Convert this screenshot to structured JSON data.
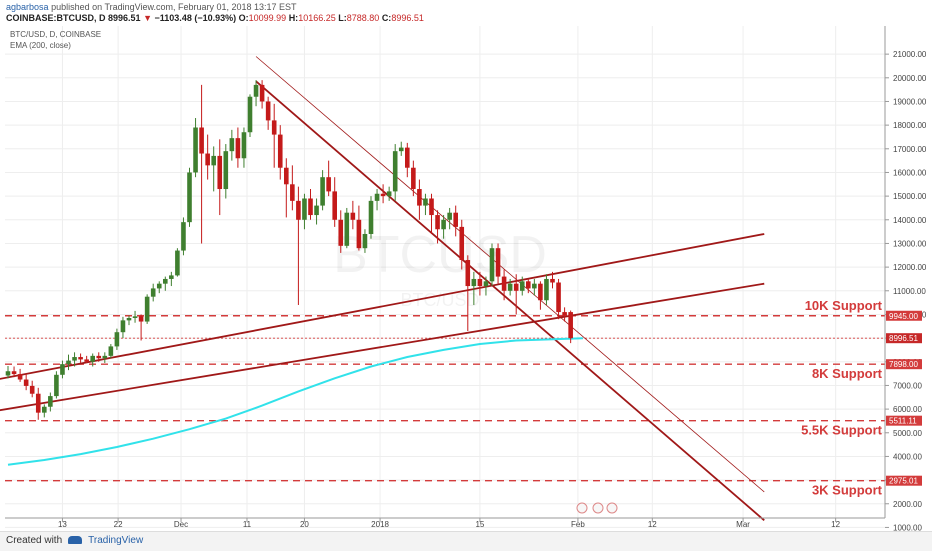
{
  "header": {
    "author": "agbarbosa",
    "published": "published on TradingView.com, February 01, 2018 13:17 EST",
    "symbol": "COINBASE:BTCUSD, D",
    "last": "8996.51",
    "change_arrow": "▼",
    "change": "−1103.48 (−10.93%)",
    "o_label": "O:",
    "o_value": "10099.99",
    "h_label": "H:",
    "h_value": "10166.25",
    "l_label": "L:",
    "l_value": "8788.80",
    "c_label": "C:",
    "c_value": "8996.51"
  },
  "legend": {
    "title": "BTC/USD, D, COINBASE",
    "indicator": "EMA (200, close)"
  },
  "watermark": {
    "symbol": "BTCUSD",
    "subtitle": "BTC/USD"
  },
  "footer": {
    "created_with": "Created with",
    "brand": "TradingView"
  },
  "colors": {
    "up": "#3f7f2f",
    "down": "#c41a1a",
    "ema": "#31e2ea",
    "trendline": "#a01818",
    "support": "#d33b3b",
    "grid": "#eeeeee",
    "price": "#c62828"
  },
  "chart_data": {
    "type": "candlestick",
    "title": "BTC/USD, D, COINBASE",
    "x_tick_labels": [
      "13",
      "22",
      "Dec",
      "11",
      "20",
      "2018",
      "15",
      "Feb",
      "12",
      "Mar",
      "12"
    ],
    "ylim": [
      500,
      21500
    ],
    "y_ticks": [
      1000,
      2000,
      3000,
      4000,
      5000,
      6000,
      7000,
      8000,
      9000,
      10000,
      11000,
      12000,
      13000,
      14000,
      15000,
      16000,
      17000,
      18000,
      19000,
      20000,
      21000
    ],
    "y_tick_labels": [
      "1000.00",
      "2000.00",
      "3000.00",
      "4000.00",
      "5000.00",
      "6000.00",
      "7000.00",
      "8000.00",
      "9000.00",
      "10000.00",
      "11000.00",
      "12000.00",
      "13000.00",
      "14000.00",
      "15000.00",
      "16000.00",
      "17000.00",
      "18000.00",
      "19000.00",
      "20000.00",
      "21000.00"
    ],
    "candles": [
      [
        7420,
        7820,
        7300,
        7600
      ],
      [
        7600,
        7800,
        7350,
        7480
      ],
      [
        7480,
        7700,
        7150,
        7250
      ],
      [
        7250,
        7500,
        6800,
        6980
      ],
      [
        6980,
        7200,
        6500,
        6650
      ],
      [
        6650,
        6900,
        5550,
        5850
      ],
      [
        5850,
        6200,
        5650,
        6100
      ],
      [
        6100,
        6700,
        5900,
        6550
      ],
      [
        6550,
        7600,
        6450,
        7450
      ],
      [
        7450,
        8050,
        7300,
        7900
      ],
      [
        7900,
        8300,
        7650,
        8050
      ],
      [
        8050,
        8400,
        7800,
        8200
      ],
      [
        8200,
        8350,
        7950,
        8100
      ],
      [
        8100,
        8250,
        7950,
        8000
      ],
      [
        8000,
        8350,
        7800,
        8250
      ],
      [
        8250,
        8400,
        8000,
        8150
      ],
      [
        8150,
        8400,
        7950,
        8250
      ],
      [
        8250,
        8750,
        8150,
        8650
      ],
      [
        8650,
        9400,
        8500,
        9250
      ],
      [
        9250,
        9900,
        9000,
        9750
      ],
      [
        9750,
        9950,
        9550,
        9850
      ],
      [
        9850,
        10150,
        9650,
        9920
      ],
      [
        9920,
        10000,
        8900,
        9700
      ],
      [
        9700,
        10850,
        9600,
        10750
      ],
      [
        10750,
        11300,
        10550,
        11100
      ],
      [
        11100,
        11400,
        10900,
        11300
      ],
      [
        11300,
        11600,
        11000,
        11500
      ],
      [
        11500,
        11800,
        11200,
        11650
      ],
      [
        11650,
        12800,
        11600,
        12700
      ],
      [
        12700,
        14100,
        12500,
        13900
      ],
      [
        13900,
        16200,
        13700,
        16000
      ],
      [
        16000,
        18300,
        15800,
        17900
      ],
      [
        17900,
        19700,
        13000,
        16800
      ],
      [
        16800,
        17600,
        15700,
        16300
      ],
      [
        16300,
        17100,
        15200,
        16700
      ],
      [
        16700,
        17400,
        14200,
        15300
      ],
      [
        15300,
        17200,
        14900,
        16900
      ],
      [
        16900,
        17800,
        16500,
        17450
      ],
      [
        17450,
        17900,
        16200,
        16600
      ],
      [
        16600,
        17900,
        16200,
        17700
      ],
      [
        17700,
        19300,
        17500,
        19200
      ],
      [
        19200,
        19900,
        18800,
        19700
      ],
      [
        19700,
        19900,
        18700,
        19000
      ],
      [
        19000,
        19200,
        17800,
        18200
      ],
      [
        18200,
        18900,
        16200,
        17600
      ],
      [
        17600,
        18000,
        15700,
        16200
      ],
      [
        16200,
        16600,
        14100,
        15500
      ],
      [
        15500,
        16300,
        14400,
        14800
      ],
      [
        14800,
        15400,
        10400,
        14000
      ],
      [
        14000,
        15100,
        13600,
        14900
      ],
      [
        14900,
        15300,
        14000,
        14200
      ],
      [
        14200,
        14900,
        13800,
        14600
      ],
      [
        14600,
        16100,
        14400,
        15800
      ],
      [
        15800,
        16500,
        15000,
        15200
      ],
      [
        15200,
        15800,
        13700,
        14000
      ],
      [
        14000,
        14400,
        12600,
        12900
      ],
      [
        12900,
        14500,
        12800,
        14300
      ],
      [
        14300,
        14800,
        13600,
        14000
      ],
      [
        14000,
        14600,
        12700,
        12800
      ],
      [
        12800,
        13600,
        12600,
        13400
      ],
      [
        13400,
        15000,
        13200,
        14800
      ],
      [
        14800,
        15300,
        14400,
        15100
      ],
      [
        15100,
        15500,
        14700,
        15000
      ],
      [
        15000,
        15400,
        14800,
        15200
      ],
      [
        15200,
        17200,
        14800,
        16900
      ],
      [
        16900,
        17300,
        16700,
        17050
      ],
      [
        17050,
        17250,
        15800,
        16200
      ],
      [
        16200,
        16500,
        15000,
        15300
      ],
      [
        15300,
        15700,
        14000,
        14600
      ],
      [
        14600,
        15100,
        14200,
        14900
      ],
      [
        14900,
        15100,
        13400,
        14200
      ],
      [
        14200,
        14400,
        13000,
        13600
      ],
      [
        13600,
        14200,
        13200,
        14000
      ],
      [
        14000,
        14500,
        13600,
        14300
      ],
      [
        14300,
        14600,
        13300,
        13700
      ],
      [
        13700,
        14000,
        11900,
        12300
      ],
      [
        12300,
        12500,
        9300,
        11200
      ],
      [
        11200,
        11800,
        10400,
        11500
      ],
      [
        11500,
        11800,
        10800,
        11200
      ],
      [
        11200,
        11600,
        10800,
        11400
      ],
      [
        11400,
        13000,
        11200,
        12800
      ],
      [
        12800,
        13000,
        11300,
        11600
      ],
      [
        11600,
        11900,
        10600,
        11000
      ],
      [
        11000,
        11500,
        10800,
        11300
      ],
      [
        11300,
        11700,
        10000,
        11000
      ],
      [
        11000,
        11600,
        10800,
        11400
      ],
      [
        11400,
        11500,
        10900,
        11100
      ],
      [
        11100,
        11500,
        10800,
        11300
      ],
      [
        11300,
        11400,
        10200,
        10600
      ],
      [
        10600,
        11700,
        10400,
        11500
      ],
      [
        11500,
        11800,
        11100,
        11350
      ],
      [
        11350,
        11500,
        9800,
        10100
      ],
      [
        10100,
        10300,
        9700,
        9950
      ],
      [
        10100,
        10166,
        8789,
        8997
      ]
    ],
    "series": [
      {
        "name": "EMA (200, close)",
        "values": [
          3650,
          3850,
          4100,
          4400,
          4750,
          5150,
          5600,
          6150,
          6750,
          7300,
          7800,
          8200,
          8500,
          8750,
          8900,
          8997
        ]
      }
    ],
    "ema_x": [
      0,
      6,
      12,
      18,
      24,
      30,
      36,
      42,
      48,
      54,
      60,
      66,
      72,
      78,
      84,
      95
    ],
    "trendlines": [
      {
        "x1": 41,
        "y1": 19850,
        "x2": 125,
        "y2": 1300
      },
      {
        "x1": -5,
        "y1": 5800,
        "x2": 125,
        "y2": 11300
      },
      {
        "x1": -5,
        "y1": 7100,
        "x2": 125,
        "y2": 13400
      },
      {
        "x1": 41,
        "y1": 20900,
        "x2": 125,
        "y2": 2500
      }
    ],
    "support_lines": [
      {
        "value": 9945,
        "label": "10K Support",
        "tag": "9945.00"
      },
      {
        "value": 7898,
        "label": "8K Support",
        "tag": "7898.00"
      },
      {
        "value": 5511.11,
        "label": "5.5K Support",
        "tag": "5511.11"
      },
      {
        "value": 2975.01,
        "label": "3K Support",
        "tag": "2975.01"
      }
    ],
    "last_price": {
      "value": 8996.51,
      "tag": "8996.51"
    },
    "legend_position": "top-left",
    "grid": true
  }
}
